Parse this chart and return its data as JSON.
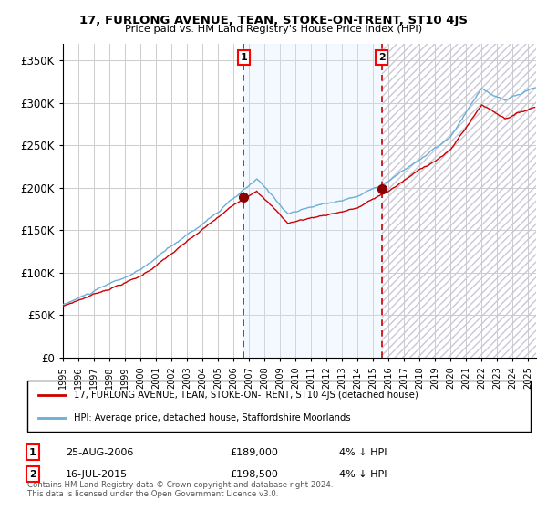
{
  "title": "17, FURLONG AVENUE, TEAN, STOKE-ON-TRENT, ST10 4JS",
  "subtitle": "Price paid vs. HM Land Registry's House Price Index (HPI)",
  "legend_line1": "17, FURLONG AVENUE, TEAN, STOKE-ON-TRENT, ST10 4JS (detached house)",
  "legend_line2": "HPI: Average price, detached house, Staffordshire Moorlands",
  "annotation1_label": "1",
  "annotation1_date": "25-AUG-2006",
  "annotation1_price": "£189,000",
  "annotation1_hpi": "4% ↓ HPI",
  "annotation2_label": "2",
  "annotation2_date": "16-JUL-2015",
  "annotation2_price": "£198,500",
  "annotation2_hpi": "4% ↓ HPI",
  "copyright": "Contains HM Land Registry data © Crown copyright and database right 2024.\nThis data is licensed under the Open Government Licence v3.0.",
  "hpi_color": "#6baed6",
  "price_color": "#cc0000",
  "marker_color": "#8b0000",
  "shade_color": "#ddeeff",
  "dashed_line_color": "#cc0000",
  "background_color": "#ffffff",
  "grid_color": "#cccccc",
  "hatch_color": "#c8c8d8",
  "ylim": [
    0,
    370000
  ],
  "yticks": [
    0,
    50000,
    100000,
    150000,
    200000,
    250000,
    300000,
    350000
  ],
  "sale1_x": 2006.65,
  "sale1_y": 189000,
  "sale2_x": 2015.54,
  "sale2_y": 198500,
  "xmin": 1995.0,
  "xmax": 2025.5
}
